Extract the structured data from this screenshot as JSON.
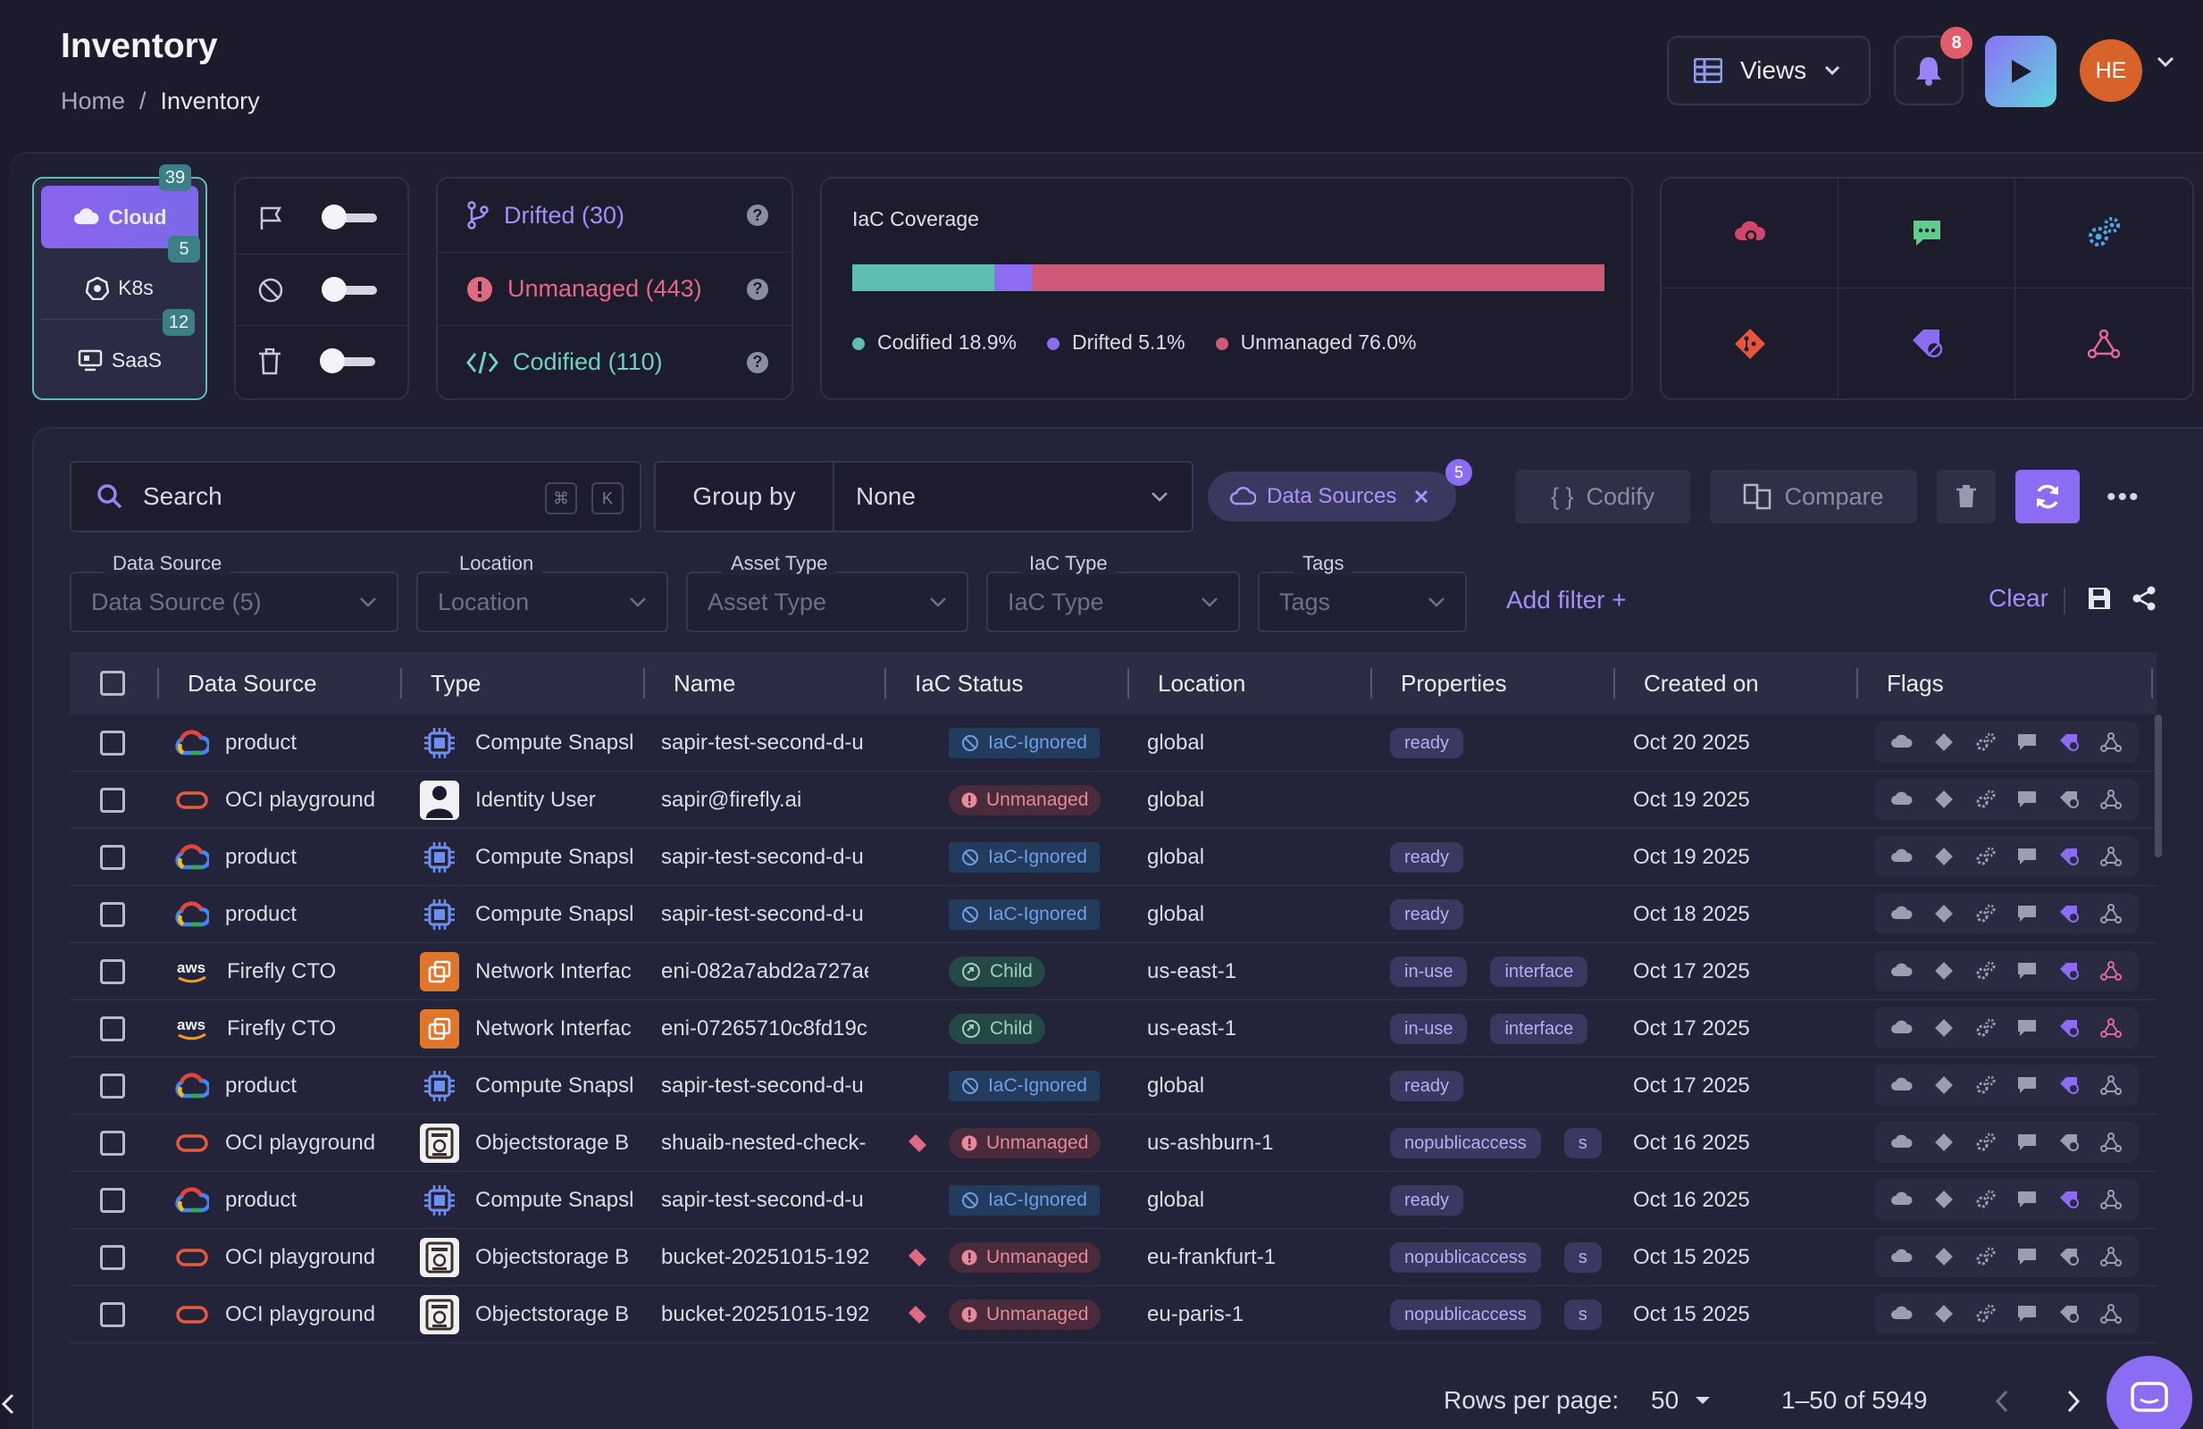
{
  "header": {
    "title": "Inventory",
    "breadcrumb": [
      "Home",
      "/",
      "Inventory"
    ],
    "views_label": "Views",
    "notification_count": "8",
    "avatar_initials": "HE"
  },
  "providers": [
    {
      "label": "Cloud",
      "count": "39",
      "icon": "cloud-icon"
    },
    {
      "label": "K8s",
      "count": "5",
      "icon": "kubernetes-icon"
    },
    {
      "label": "SaaS",
      "count": "12",
      "icon": "saas-icon"
    }
  ],
  "toggles": [
    {
      "icon": "flag-icon",
      "on": false
    },
    {
      "icon": "ignore-icon",
      "on": false
    },
    {
      "icon": "trash-icon",
      "on": false
    }
  ],
  "drift_summary": [
    {
      "label": "Drifted (30)",
      "color": "#a48ef7",
      "icon": "branch-icon"
    },
    {
      "label": "Unmanaged (443)",
      "color": "#e06a84",
      "icon": "alert-icon"
    },
    {
      "label": "Codified (110)",
      "color": "#6fd1c4",
      "icon": "code-icon"
    }
  ],
  "coverage": {
    "title": "IaC Coverage",
    "segments": [
      {
        "label": "Codified 18.9%",
        "value": 18.9,
        "color": "#5fbfae"
      },
      {
        "label": "Drifted 5.1%",
        "value": 5.1,
        "color": "#8b6cf2"
      },
      {
        "label": "Unmanaged 76.0%",
        "value": 76.0,
        "color": "#cf5a78"
      }
    ]
  },
  "integrations": [
    "cloud-search-icon",
    "chat-icon",
    "gears-icon",
    "git-icon",
    "terraform-icon",
    "tag-icon",
    "graph-icon"
  ],
  "toolbar": {
    "search_placeholder": "Search",
    "kbd_cmd": "⌘",
    "kbd_k": "K",
    "group_by_label": "Group by",
    "group_by_value": "None",
    "chip_label": "Data Sources",
    "chip_count": "5",
    "codify_label": "Codify",
    "compare_label": "Compare",
    "more_label": "•••"
  },
  "filters": [
    {
      "label": "Data Source",
      "value": "Data Source (5)"
    },
    {
      "label": "Location",
      "value": "Location"
    },
    {
      "label": "Asset Type",
      "value": "Asset Type"
    },
    {
      "label": "IaC Type",
      "value": "IaC Type"
    },
    {
      "label": "Tags",
      "value": "Tags"
    }
  ],
  "add_filter_label": "Add filter +",
  "clear_label": "Clear",
  "table": {
    "columns": [
      "Data Source",
      "Type",
      "Name",
      "IaC Status",
      "Location",
      "Properties",
      "Created on",
      "Flags"
    ],
    "rows": [
      {
        "source": "product",
        "src": "gcp",
        "type": "Compute Snapsl",
        "ticon": "chip",
        "name": "sapir-test-second-d-u",
        "tagged": false,
        "status": "IaC-Ignored",
        "skind": "ignored",
        "location": "global",
        "props": [
          "ready"
        ],
        "created": "Oct 20 2025"
      },
      {
        "source": "OCI playground",
        "src": "oci",
        "type": "Identity User",
        "ticon": "user",
        "name": "sapir@firefly.ai",
        "tagged": false,
        "status": "Unmanaged",
        "skind": "unmanaged",
        "location": "global",
        "props": [],
        "created": "Oct 19 2025"
      },
      {
        "source": "product",
        "src": "gcp",
        "type": "Compute Snapsl",
        "ticon": "chip",
        "name": "sapir-test-second-d-u",
        "tagged": false,
        "status": "IaC-Ignored",
        "skind": "ignored",
        "location": "global",
        "props": [
          "ready"
        ],
        "created": "Oct 19 2025"
      },
      {
        "source": "product",
        "src": "gcp",
        "type": "Compute Snapsl",
        "ticon": "chip",
        "name": "sapir-test-second-d-u",
        "tagged": false,
        "status": "IaC-Ignored",
        "skind": "ignored",
        "location": "global",
        "props": [
          "ready"
        ],
        "created": "Oct 18 2025"
      },
      {
        "source": "Firefly CTO",
        "src": "aws",
        "type": "Network Interfac",
        "ticon": "nic",
        "name": "eni-082a7abd2a727ae",
        "tagged": false,
        "status": "Child",
        "skind": "child",
        "location": "us-east-1",
        "props": [
          "in-use",
          "interface"
        ],
        "created": "Oct 17 2025"
      },
      {
        "source": "Firefly CTO",
        "src": "aws",
        "type": "Network Interfac",
        "ticon": "nic",
        "name": "eni-07265710c8fd19c",
        "tagged": false,
        "status": "Child",
        "skind": "child",
        "location": "us-east-1",
        "props": [
          "in-use",
          "interface"
        ],
        "created": "Oct 17 2025"
      },
      {
        "source": "product",
        "src": "gcp",
        "type": "Compute Snapsl",
        "ticon": "chip",
        "name": "sapir-test-second-d-u",
        "tagged": false,
        "status": "IaC-Ignored",
        "skind": "ignored",
        "location": "global",
        "props": [
          "ready"
        ],
        "created": "Oct 17 2025"
      },
      {
        "source": "OCI playground",
        "src": "oci",
        "type": "Objectstorage B",
        "ticon": "bucket",
        "name": "shuaib-nested-check-",
        "tagged": true,
        "status": "Unmanaged",
        "skind": "unmanaged",
        "location": "us-ashburn-1",
        "props": [
          "nopublicaccess",
          "s"
        ],
        "created": "Oct 16 2025"
      },
      {
        "source": "product",
        "src": "gcp",
        "type": "Compute Snapsl",
        "ticon": "chip",
        "name": "sapir-test-second-d-u",
        "tagged": false,
        "status": "IaC-Ignored",
        "skind": "ignored",
        "location": "global",
        "props": [
          "ready"
        ],
        "created": "Oct 16 2025"
      },
      {
        "source": "OCI playground",
        "src": "oci",
        "type": "Objectstorage B",
        "ticon": "bucket",
        "name": "bucket-20251015-192",
        "tagged": true,
        "status": "Unmanaged",
        "skind": "unmanaged",
        "location": "eu-frankfurt-1",
        "props": [
          "nopublicaccess",
          "s"
        ],
        "created": "Oct 15 2025"
      },
      {
        "source": "OCI playground",
        "src": "oci",
        "type": "Objectstorage B",
        "ticon": "bucket",
        "name": "bucket-20251015-192",
        "tagged": true,
        "status": "Unmanaged",
        "skind": "unmanaged",
        "location": "eu-paris-1",
        "props": [
          "nopublicaccess",
          "s"
        ],
        "created": "Oct 15 2025"
      }
    ]
  },
  "pagination": {
    "rows_per_page_label": "Rows per page:",
    "rows_per_page": "50",
    "range": "1–50 of 5949"
  }
}
